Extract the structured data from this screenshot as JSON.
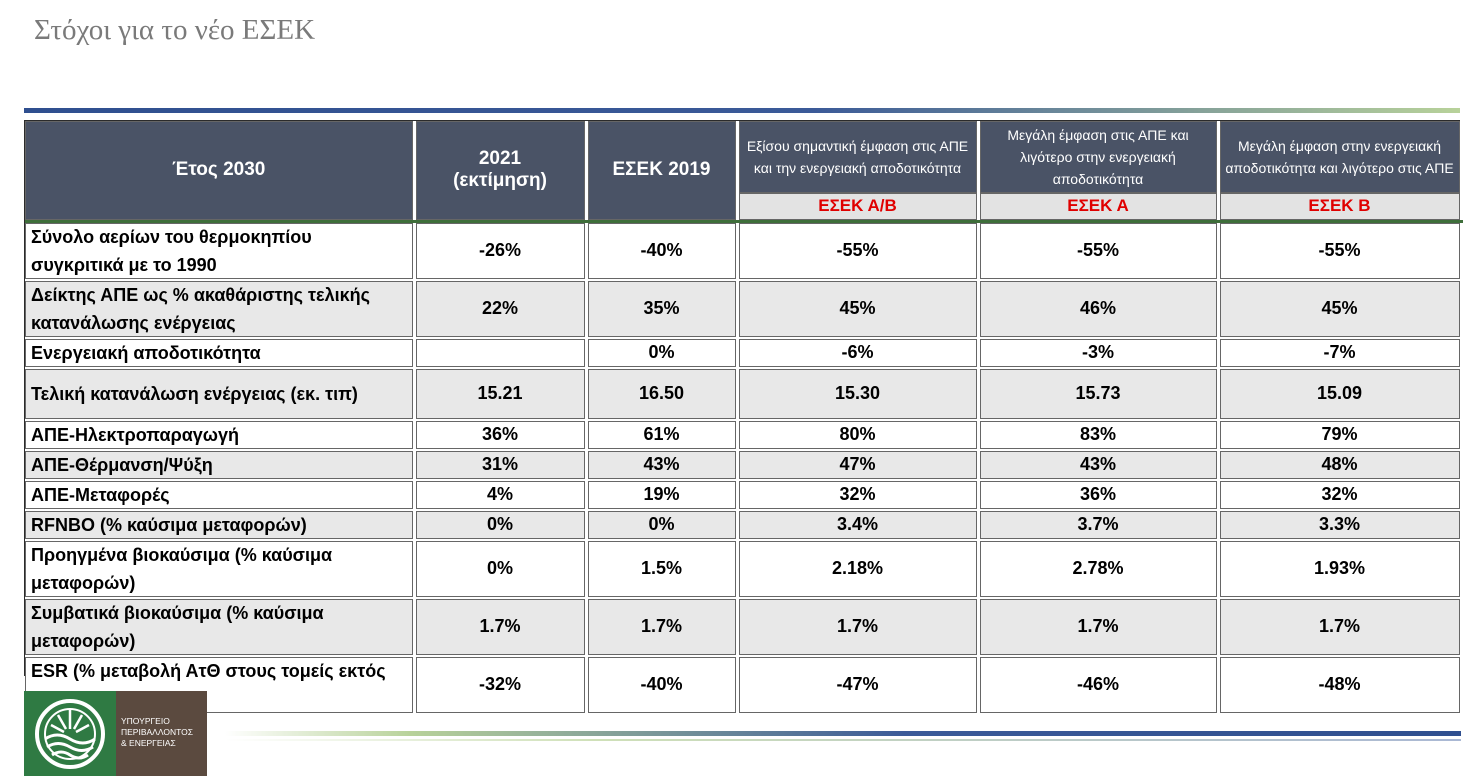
{
  "title": "Στόχοι για το νέο ΕΣΕΚ",
  "header": {
    "col0": "Έτος 2030",
    "col1": "2021\n(εκτίμηση)",
    "col2": "ΕΣΕΚ 2019",
    "scenarios": [
      {
        "desc": "Εξίσου σημαντική έμφαση στις ΑΠΕ και την ενεργειακή αποδοτικότητα",
        "code": "ΕΣΕΚ Α/Β"
      },
      {
        "desc": "Μεγάλη έμφαση στις ΑΠΕ και λιγότερο στην ενεργειακή αποδοτικότητα",
        "code": "ΕΣΕΚ Α"
      },
      {
        "desc": "Μεγάλη έμφαση στην ενεργειακή αποδοτικότητα και λιγότερο στις ΑΠΕ",
        "code": "ΕΣΕΚ Β"
      }
    ]
  },
  "rows": [
    {
      "label": "Σύνολο αερίων του θερμοκηπίου συγκριτικά με το 1990",
      "values": [
        "-26%",
        "-40%",
        "-55%",
        "-55%",
        "-55%"
      ]
    },
    {
      "label": "Δείκτης ΑΠΕ ως % ακαθάριστης τελικής κατανάλωσης ενέργειας",
      "values": [
        "22%",
        "35%",
        "45%",
        "46%",
        "45%"
      ]
    },
    {
      "label": "Ενεργειακή αποδοτικότητα",
      "values": [
        "",
        "0%",
        "-6%",
        "-3%",
        "-7%"
      ]
    },
    {
      "label": "Τελική κατανάλωση ενέργειας (εκ. τιπ)",
      "values": [
        "15.21",
        "16.50",
        "15.30",
        "15.73",
        "15.09"
      ]
    },
    {
      "label": "ΑΠΕ-Ηλεκτροπαραγωγή",
      "values": [
        "36%",
        "61%",
        "80%",
        "83%",
        "79%"
      ]
    },
    {
      "label": "ΑΠΕ-Θέρμανση/Ψύξη",
      "values": [
        "31%",
        "43%",
        "47%",
        "43%",
        "48%"
      ]
    },
    {
      "label": "ΑΠΕ-Μεταφορές",
      "values": [
        "4%",
        "19%",
        "32%",
        "36%",
        "32%"
      ]
    },
    {
      "label": "RFNBO (% καύσιμα μεταφορών)",
      "values": [
        "0%",
        "0%",
        "3.4%",
        "3.7%",
        "3.3%"
      ]
    },
    {
      "label": "Προηγμένα βιοκαύσιμα (% καύσιμα μεταφορών)",
      "values": [
        "0%",
        "1.5%",
        "2.18%",
        "2.78%",
        "1.93%"
      ]
    },
    {
      "label": "Συμβατικά βιοκαύσιμα (% καύσιμα μεταφορών)",
      "values": [
        "1.7%",
        "1.7%",
        "1.7%",
        "1.7%",
        "1.7%"
      ]
    },
    {
      "label": "ESR (% μεταβολή ΑτΘ στους τομείς εκτός ETS)",
      "values": [
        "-32%",
        "-40%",
        "-47%",
        "-46%",
        "-48%"
      ]
    }
  ],
  "logo": {
    "text_lines": [
      "ΥΠΟΥΡΓΕΙΟ",
      "ΠΕΡΙΒΑΛΛΟΝΤΟΣ",
      "& ΕΝΕΡΓΕΙΑΣ"
    ],
    "green": "#2f7a43",
    "brown": "#5b4a3f"
  }
}
